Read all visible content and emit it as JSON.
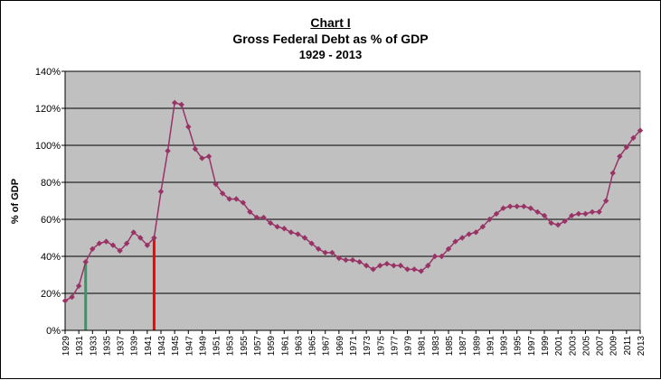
{
  "chart_data": {
    "type": "line",
    "title": "Chart I",
    "subtitle": "Gross Federal Debt as % of GDP",
    "period": "1929 - 2013",
    "xlabel": "",
    "ylabel": "% of GDP",
    "ylim": [
      0,
      140
    ],
    "yticks": [
      "0%",
      "20%",
      "40%",
      "60%",
      "80%",
      "100%",
      "120%",
      "140%"
    ],
    "x_tick_labels": [
      "1929",
      "1931",
      "1933",
      "1935",
      "1937",
      "1939",
      "1941",
      "1943",
      "1945",
      "1947",
      "1949",
      "1951",
      "1953",
      "1955",
      "1957",
      "1959",
      "1961",
      "1963",
      "1965",
      "1967",
      "1969",
      "1971",
      "1973",
      "1975",
      "1977",
      "1979",
      "1981",
      "1983",
      "1985",
      "1987",
      "1989",
      "1991",
      "1993",
      "1995",
      "1997",
      "1999",
      "2001",
      "2003",
      "2005",
      "2007",
      "2009",
      "2011",
      "2013"
    ],
    "grid": "horizontal",
    "plot_background": "#c0c0c0",
    "series": [
      {
        "color": "#993366",
        "marker": "diamond",
        "x": [
          1929,
          1930,
          1931,
          1932,
          1933,
          1934,
          1935,
          1936,
          1937,
          1938,
          1939,
          1940,
          1941,
          1942,
          1943,
          1944,
          1945,
          1946,
          1947,
          1948,
          1949,
          1950,
          1951,
          1952,
          1953,
          1954,
          1955,
          1956,
          1957,
          1958,
          1959,
          1960,
          1961,
          1962,
          1963,
          1964,
          1965,
          1966,
          1967,
          1968,
          1969,
          1970,
          1971,
          1972,
          1973,
          1974,
          1975,
          1976,
          1977,
          1978,
          1979,
          1980,
          1981,
          1982,
          1983,
          1984,
          1985,
          1986,
          1987,
          1988,
          1989,
          1990,
          1991,
          1992,
          1993,
          1994,
          1995,
          1996,
          1997,
          1998,
          1999,
          2000,
          2001,
          2002,
          2003,
          2004,
          2005,
          2006,
          2007,
          2008,
          2009,
          2010,
          2011,
          2012,
          2013
        ],
        "values": [
          16,
          18,
          24,
          37,
          44,
          47,
          48,
          46,
          43,
          47,
          53,
          50,
          46,
          50,
          75,
          97,
          123,
          122,
          110,
          98,
          93,
          94,
          79,
          74,
          71,
          71,
          69,
          64,
          61,
          61,
          58,
          56,
          55,
          53,
          52,
          50,
          47,
          44,
          42,
          42,
          39,
          38,
          38,
          37,
          35,
          33,
          35,
          36,
          35,
          35,
          33,
          33,
          32,
          35,
          40,
          40,
          44,
          48,
          50,
          52,
          53,
          56,
          60,
          63,
          66,
          67,
          67,
          67,
          66,
          64,
          62,
          58,
          57,
          59,
          62,
          63,
          63,
          64,
          64,
          70,
          85,
          94,
          99,
          104,
          108
        ]
      }
    ],
    "vertical_markers": [
      {
        "x": 1932,
        "color": "#339966"
      },
      {
        "x": 1942,
        "color": "#ff0000"
      }
    ]
  }
}
